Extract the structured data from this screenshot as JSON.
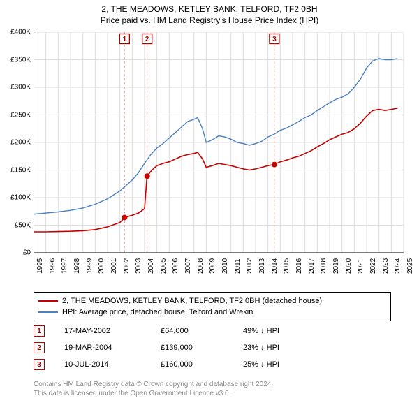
{
  "title_line1": "2, THE MEADOWS, KETLEY BANK, TELFORD, TF2 0BH",
  "title_line2": "Price paid vs. HM Land Registry's House Price Index (HPI)",
  "chart": {
    "type": "line",
    "background_color": "#ffffff",
    "grid_color": "#dddddd",
    "axis_color": "#000000",
    "x_years": [
      1995,
      1996,
      1997,
      1998,
      1999,
      2000,
      2001,
      2002,
      2003,
      2004,
      2005,
      2006,
      2007,
      2008,
      2009,
      2010,
      2011,
      2012,
      2013,
      2014,
      2015,
      2016,
      2017,
      2018,
      2019,
      2020,
      2021,
      2022,
      2023,
      2024,
      2025
    ],
    "xlim": [
      1995,
      2025
    ],
    "ylim": [
      0,
      400000
    ],
    "ytick_step": 50000,
    "ytick_labels": [
      "£0",
      "£50K",
      "£100K",
      "£150K",
      "£200K",
      "£250K",
      "£300K",
      "£350K",
      "£400K"
    ],
    "series": [
      {
        "name": "price_paid",
        "color": "#c40000",
        "line_width": 1.6,
        "data": [
          [
            1995,
            38000
          ],
          [
            1996,
            38000
          ],
          [
            1997,
            38500
          ],
          [
            1998,
            39000
          ],
          [
            1999,
            40000
          ],
          [
            2000,
            42000
          ],
          [
            2001,
            47000
          ],
          [
            2002,
            55000
          ],
          [
            2002.4,
            64000
          ],
          [
            2003,
            68000
          ],
          [
            2003.5,
            72000
          ],
          [
            2004,
            80000
          ],
          [
            2004.2,
            139000
          ],
          [
            2004.6,
            150000
          ],
          [
            2005,
            158000
          ],
          [
            2005.5,
            162000
          ],
          [
            2006,
            165000
          ],
          [
            2006.5,
            170000
          ],
          [
            2007,
            175000
          ],
          [
            2007.5,
            178000
          ],
          [
            2008,
            180000
          ],
          [
            2008.3,
            182000
          ],
          [
            2008.7,
            170000
          ],
          [
            2009,
            155000
          ],
          [
            2009.5,
            158000
          ],
          [
            2010,
            162000
          ],
          [
            2010.5,
            160000
          ],
          [
            2011,
            158000
          ],
          [
            2011.5,
            155000
          ],
          [
            2012,
            152000
          ],
          [
            2012.5,
            150000
          ],
          [
            2013,
            152000
          ],
          [
            2013.5,
            155000
          ],
          [
            2014,
            158000
          ],
          [
            2014.5,
            160000
          ],
          [
            2015,
            165000
          ],
          [
            2015.5,
            168000
          ],
          [
            2016,
            172000
          ],
          [
            2016.5,
            175000
          ],
          [
            2017,
            180000
          ],
          [
            2017.5,
            185000
          ],
          [
            2018,
            192000
          ],
          [
            2018.5,
            198000
          ],
          [
            2019,
            205000
          ],
          [
            2019.5,
            210000
          ],
          [
            2020,
            215000
          ],
          [
            2020.5,
            218000
          ],
          [
            2021,
            225000
          ],
          [
            2021.5,
            235000
          ],
          [
            2022,
            248000
          ],
          [
            2022.5,
            258000
          ],
          [
            2023,
            260000
          ],
          [
            2023.5,
            258000
          ],
          [
            2024,
            260000
          ],
          [
            2024.5,
            262000
          ]
        ]
      },
      {
        "name": "hpi",
        "color": "#4a7fc0",
        "line_width": 1.4,
        "data": [
          [
            1995,
            70000
          ],
          [
            1996,
            72000
          ],
          [
            1997,
            74000
          ],
          [
            1998,
            77000
          ],
          [
            1999,
            81000
          ],
          [
            2000,
            88000
          ],
          [
            2001,
            98000
          ],
          [
            2002,
            112000
          ],
          [
            2003,
            132000
          ],
          [
            2003.5,
            145000
          ],
          [
            2004,
            162000
          ],
          [
            2004.5,
            178000
          ],
          [
            2005,
            190000
          ],
          [
            2005.5,
            198000
          ],
          [
            2006,
            208000
          ],
          [
            2006.5,
            218000
          ],
          [
            2007,
            228000
          ],
          [
            2007.5,
            238000
          ],
          [
            2008,
            242000
          ],
          [
            2008.3,
            245000
          ],
          [
            2008.7,
            225000
          ],
          [
            2009,
            200000
          ],
          [
            2009.5,
            205000
          ],
          [
            2010,
            212000
          ],
          [
            2010.5,
            210000
          ],
          [
            2011,
            206000
          ],
          [
            2011.5,
            200000
          ],
          [
            2012,
            198000
          ],
          [
            2012.5,
            195000
          ],
          [
            2013,
            198000
          ],
          [
            2013.5,
            202000
          ],
          [
            2014,
            210000
          ],
          [
            2014.5,
            215000
          ],
          [
            2015,
            222000
          ],
          [
            2015.5,
            226000
          ],
          [
            2016,
            232000
          ],
          [
            2016.5,
            238000
          ],
          [
            2017,
            245000
          ],
          [
            2017.5,
            250000
          ],
          [
            2018,
            258000
          ],
          [
            2018.5,
            265000
          ],
          [
            2019,
            272000
          ],
          [
            2019.5,
            278000
          ],
          [
            2020,
            282000
          ],
          [
            2020.5,
            288000
          ],
          [
            2021,
            300000
          ],
          [
            2021.5,
            315000
          ],
          [
            2022,
            335000
          ],
          [
            2022.5,
            348000
          ],
          [
            2023,
            352000
          ],
          [
            2023.5,
            350000
          ],
          [
            2024,
            350000
          ],
          [
            2024.5,
            352000
          ]
        ]
      }
    ],
    "markers": [
      {
        "badge": "1",
        "x": 2002.38,
        "y": 64000,
        "color": "#c40000"
      },
      {
        "badge": "2",
        "x": 2004.21,
        "y": 139000,
        "color": "#c40000"
      },
      {
        "badge": "3",
        "x": 2014.52,
        "y": 160000,
        "color": "#c40000"
      }
    ],
    "badge_vline_color": "#f5a0a0",
    "badge_y_top": 388000
  },
  "legend": {
    "items": [
      {
        "color": "#c40000",
        "label": "2, THE MEADOWS, KETLEY BANK, TELFORD, TF2 0BH (detached house)"
      },
      {
        "color": "#4a7fc0",
        "label": "HPI: Average price, detached house, Telford and Wrekin"
      }
    ]
  },
  "annotations": [
    {
      "badge": "1",
      "date": "17-MAY-2002",
      "price": "£64,000",
      "hpi": "49% ↓ HPI"
    },
    {
      "badge": "2",
      "date": "19-MAR-2004",
      "price": "£139,000",
      "hpi": "23% ↓ HPI"
    },
    {
      "badge": "3",
      "date": "10-JUL-2014",
      "price": "£160,000",
      "hpi": "25% ↓ HPI"
    }
  ],
  "footer_line1": "Contains HM Land Registry data © Crown copyright and database right 2024.",
  "footer_line2": "This data is licensed under the Open Government Licence v3.0."
}
